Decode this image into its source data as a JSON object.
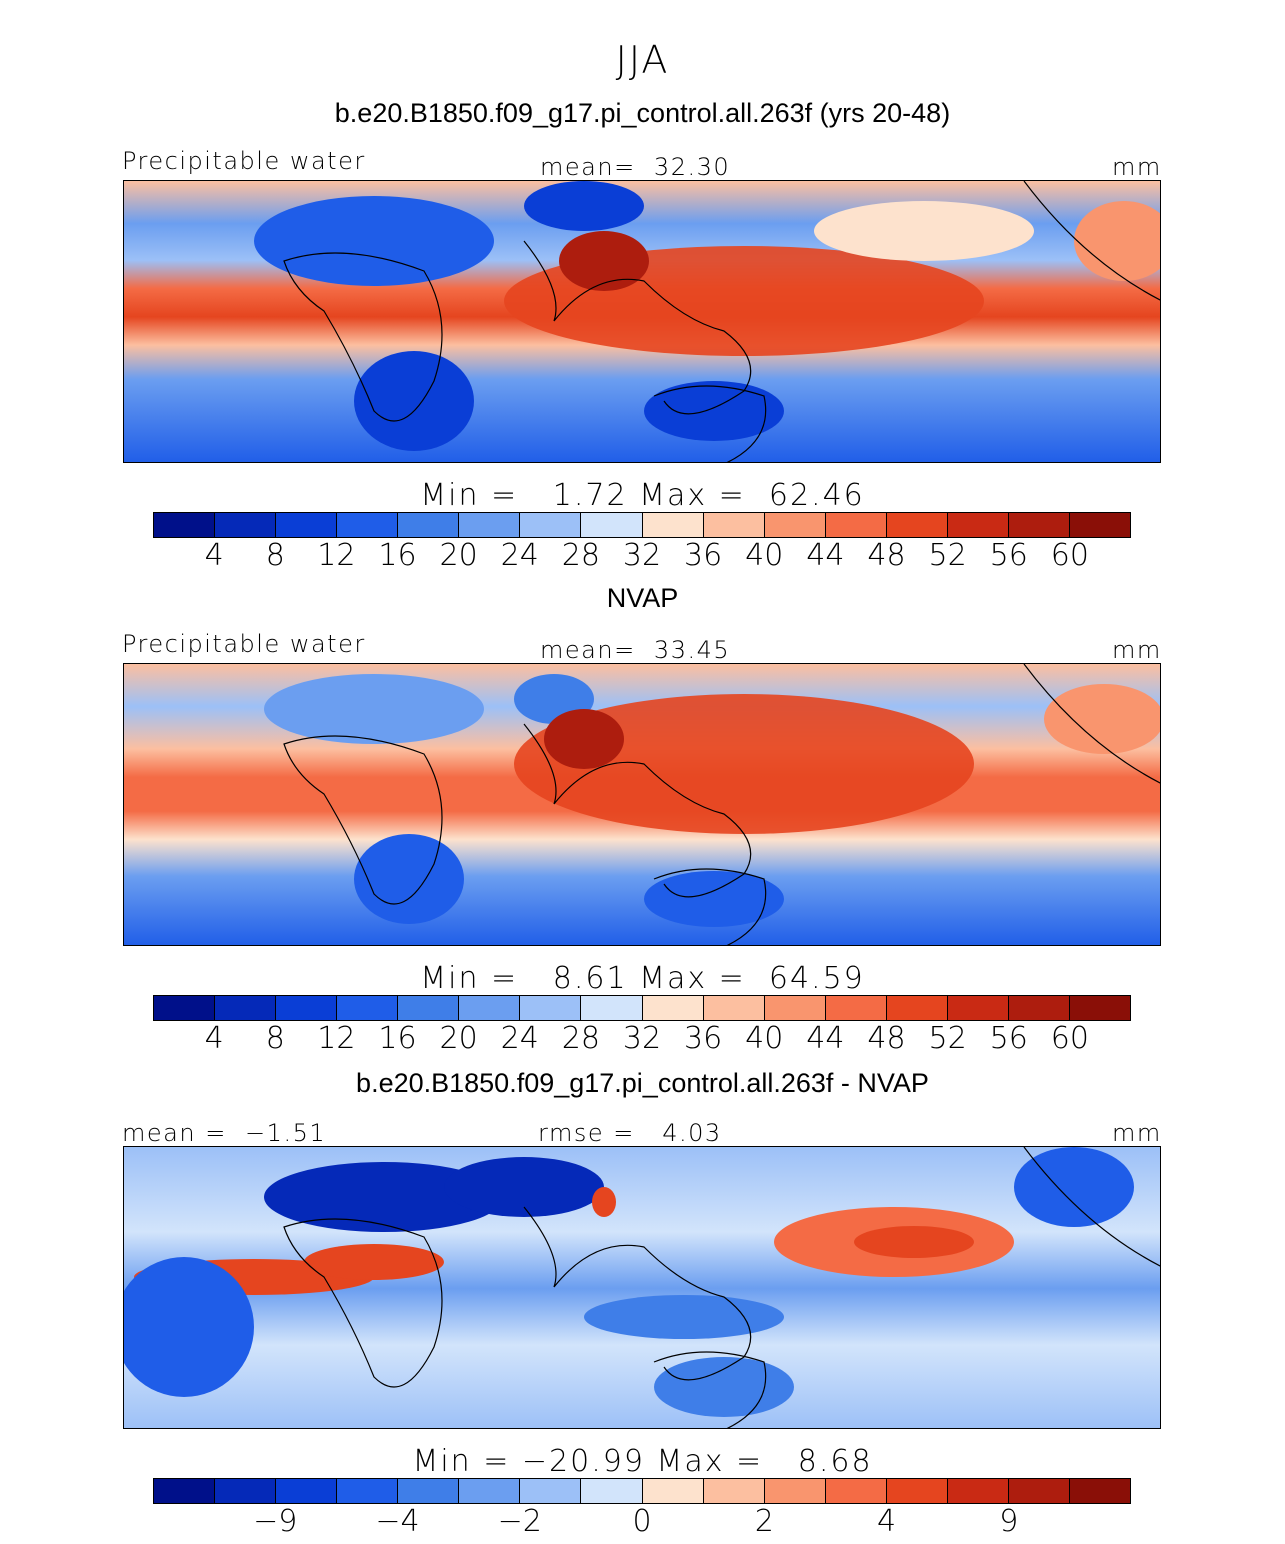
{
  "title": "JJA",
  "panels": [
    {
      "title": "b.e20.B1850.f09_g17.pi_control.all.263f (yrs 20-48)",
      "left_label": "Precipitable water",
      "center_label": "mean=  32.30",
      "right_label": "mm",
      "minmax": "Min =   1.72 Max =  62.46",
      "ticks": [
        "4",
        "8",
        "12",
        "16",
        "20",
        "24",
        "28",
        "32",
        "36",
        "40",
        "44",
        "48",
        "52",
        "56",
        "60"
      ],
      "tick_slots": [
        1,
        2,
        3,
        4,
        5,
        6,
        7,
        8,
        9,
        10,
        11,
        12,
        13,
        14,
        15
      ]
    },
    {
      "title": "NVAP",
      "left_label": "Precipitable water",
      "center_label": "mean=  33.45",
      "right_label": "mm",
      "minmax": "Min =   8.61 Max =  64.59",
      "ticks": [
        "4",
        "8",
        "12",
        "16",
        "20",
        "24",
        "28",
        "32",
        "36",
        "40",
        "44",
        "48",
        "52",
        "56",
        "60"
      ],
      "tick_slots": [
        1,
        2,
        3,
        4,
        5,
        6,
        7,
        8,
        9,
        10,
        11,
        12,
        13,
        14,
        15
      ]
    },
    {
      "title": "b.e20.B1850.f09_g17.pi_control.all.263f - NVAP",
      "left_label": "mean =  −1.51",
      "center_label": "rmse =   4.03",
      "right_label": "mm",
      "minmax": "Min = −20.99 Max =   8.68",
      "ticks": [
        "−9",
        "−4",
        "−2",
        "0",
        "2",
        "4",
        "9"
      ],
      "tick_slots": [
        2,
        4,
        6,
        8,
        10,
        12,
        14
      ]
    }
  ],
  "colorbar_colors": [
    "#00108a",
    "#0529b8",
    "#0a3ed6",
    "#1f5de8",
    "#3f7ee8",
    "#6b9ef0",
    "#9cc0f7",
    "#d2e4fb",
    "#fde2cd",
    "#fcbfa0",
    "#f9956e",
    "#f46b45",
    "#e5451f",
    "#c92a14",
    "#ad1d0e",
    "#8a0f07"
  ]
}
